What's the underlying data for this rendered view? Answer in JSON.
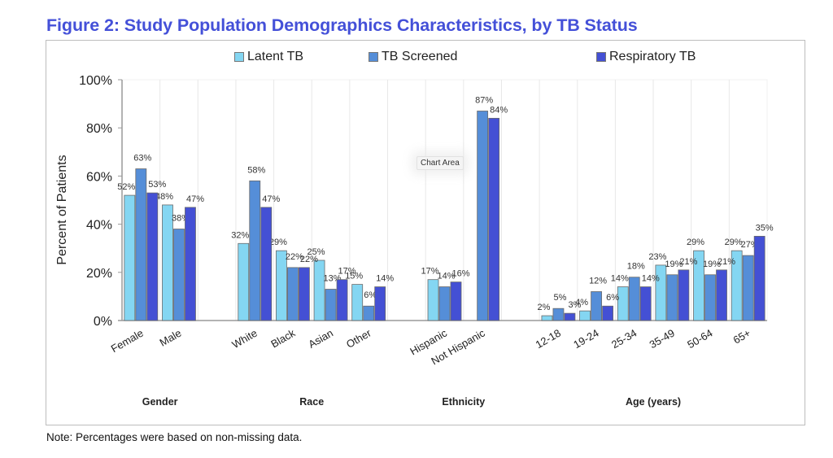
{
  "title": "Figure 2: Study Population Demographics Characteristics, by TB Status",
  "note": "Note: Percentages were based on non-missing data.",
  "tooltip": "Chart Area",
  "chart_data": {
    "type": "bar",
    "title": "Figure 2: Study Population Demographics Characteristics, by TB Status",
    "xlabel": "",
    "ylabel": "Percent of Patients",
    "ylim": [
      0,
      100
    ],
    "yticks": [
      "0%",
      "20%",
      "40%",
      "60%",
      "80%",
      "100%"
    ],
    "ytick_values": [
      0,
      20,
      40,
      60,
      80,
      100
    ],
    "legend_position": "top",
    "grid": false,
    "categories": [
      "Female",
      "Male",
      "",
      "White",
      "Black",
      "Asian",
      "Other",
      "",
      "Hispanic",
      "Not Hispanic",
      "",
      "12-18",
      "19-24",
      "25-34",
      "35-49",
      "50-64",
      "65+"
    ],
    "groups": [
      {
        "label": "Gender",
        "categories": [
          "Female",
          "Male"
        ]
      },
      {
        "label": "Race",
        "categories": [
          "White",
          "Black",
          "Asian",
          "Other"
        ]
      },
      {
        "label": "Ethnicity",
        "categories": [
          "Hispanic",
          "Not Hispanic"
        ]
      },
      {
        "label": "Age (years)",
        "categories": [
          "12-18",
          "19-24",
          "25-34",
          "35-49",
          "50-64",
          "65+"
        ]
      }
    ],
    "series": [
      {
        "name": "Latent TB",
        "color": "#84D6F2",
        "values": [
          52,
          48,
          null,
          32,
          29,
          25,
          15,
          null,
          17,
          null,
          null,
          2,
          4,
          14,
          23,
          29,
          29
        ]
      },
      {
        "name": "TB Screened",
        "color": "#558ED8",
        "values": [
          63,
          38,
          null,
          58,
          22,
          13,
          6,
          null,
          14,
          87,
          null,
          5,
          12,
          18,
          19,
          19,
          27
        ]
      },
      {
        "name": "Respiratory TB",
        "color": "#4450D4",
        "values": [
          53,
          47,
          null,
          47,
          22,
          17,
          14,
          null,
          16,
          84,
          null,
          3,
          6,
          14,
          21,
          21,
          35
        ]
      }
    ]
  }
}
